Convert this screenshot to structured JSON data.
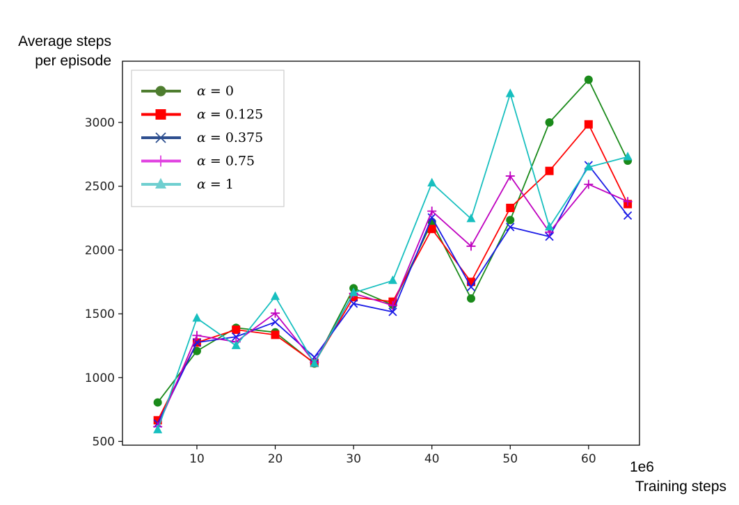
{
  "chart_data": {
    "type": "line",
    "xlabel": "Training steps",
    "x_multiplier": "1e6",
    "ylabel_lines": [
      "Average steps",
      "per episode"
    ],
    "xlim": [
      0.5,
      66.5
    ],
    "ylim": [
      470,
      3480
    ],
    "xticks": [
      10,
      20,
      30,
      40,
      50,
      60
    ],
    "yticks": [
      500,
      1000,
      1500,
      2000,
      2500,
      3000
    ],
    "grid": false,
    "legend_position": "top-left",
    "x": [
      5,
      10,
      15,
      20,
      25,
      30,
      35,
      40,
      45,
      50,
      55,
      60,
      65
    ],
    "series": [
      {
        "name": "α = 0",
        "color": "#1a8a1a",
        "legend_color": "#4e7d2f",
        "marker": "circle",
        "values": [
          805,
          1208,
          1390,
          1355,
          1110,
          1700,
          1570,
          2220,
          1620,
          2235,
          3000,
          3335,
          2700
        ]
      },
      {
        "name": "α = 0.125",
        "color": "#ff0000",
        "legend_color": "#ff0000",
        "marker": "square",
        "values": [
          665,
          1275,
          1375,
          1335,
          1115,
          1630,
          1595,
          2165,
          1750,
          2330,
          2620,
          2985,
          2360
        ]
      },
      {
        "name": "α = 0.375",
        "color": "#1a1ae6",
        "legend_color": "#2e4f8f",
        "marker": "x",
        "values": [
          640,
          1275,
          1320,
          1435,
          1160,
          1580,
          1515,
          2255,
          1710,
          2180,
          2105,
          2665,
          2270
        ]
      },
      {
        "name": "α = 0.75",
        "color": "#bf00bf",
        "legend_color": "#e040e0",
        "marker": "plus",
        "values": [
          615,
          1330,
          1280,
          1505,
          1120,
          1660,
          1565,
          2305,
          2030,
          2580,
          2140,
          2515,
          2380
        ]
      },
      {
        "name": "α = 1",
        "color": "#17bfbf",
        "legend_color": "#6fcfd0",
        "marker": "triangle",
        "values": [
          590,
          1465,
          1250,
          1635,
          1110,
          1665,
          1760,
          2525,
          2245,
          3225,
          2180,
          2650,
          2730
        ]
      }
    ]
  }
}
